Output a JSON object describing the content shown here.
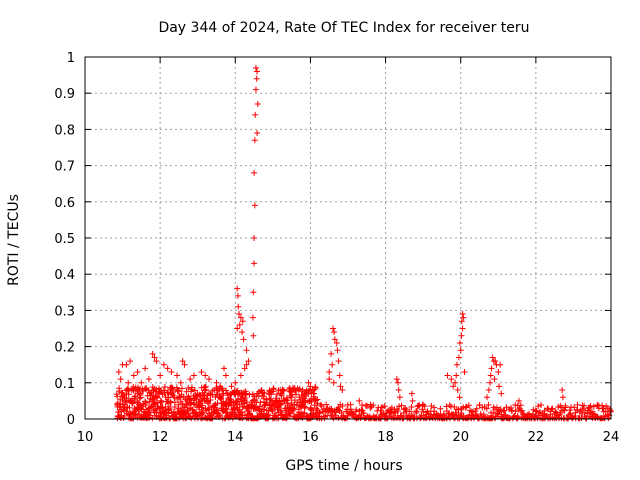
{
  "chart_data": {
    "type": "scatter",
    "title": "Day 344 of 2024, Rate Of TEC Index for receiver teru",
    "xlabel": "GPS time / hours",
    "ylabel": "ROTI / TECUs",
    "xlim": [
      10,
      24
    ],
    "ylim": [
      0,
      1
    ],
    "grid": true,
    "marker": "plus",
    "color": "#ff0000",
    "x_ticks": [
      "10",
      "12",
      "14",
      "16",
      "18",
      "20",
      "22",
      "24"
    ],
    "y_ticks": [
      "0",
      "0.1",
      "0.2",
      "0.3",
      "0.4",
      "0.5",
      "0.6",
      "0.7",
      "0.8",
      "0.9",
      "1"
    ],
    "series": [
      {
        "name": "ROTI",
        "note": "background noise band (~0–0.05 TECU) generated procedurally across 10.8–24 h",
        "peaks": [
          {
            "x": 14.55,
            "y": 0.97
          },
          {
            "x": 14.58,
            "y": 0.96
          },
          {
            "x": 14.57,
            "y": 0.94
          },
          {
            "x": 14.55,
            "y": 0.91
          },
          {
            "x": 14.6,
            "y": 0.87
          },
          {
            "x": 14.53,
            "y": 0.84
          },
          {
            "x": 14.58,
            "y": 0.79
          },
          {
            "x": 14.52,
            "y": 0.77
          },
          {
            "x": 14.5,
            "y": 0.68
          },
          {
            "x": 14.52,
            "y": 0.59
          },
          {
            "x": 14.5,
            "y": 0.5
          },
          {
            "x": 14.5,
            "y": 0.43
          },
          {
            "x": 14.48,
            "y": 0.35
          },
          {
            "x": 14.47,
            "y": 0.28
          },
          {
            "x": 14.48,
            "y": 0.23
          },
          {
            "x": 14.05,
            "y": 0.36
          },
          {
            "x": 14.07,
            "y": 0.34
          },
          {
            "x": 14.08,
            "y": 0.31
          },
          {
            "x": 14.1,
            "y": 0.29
          },
          {
            "x": 14.15,
            "y": 0.28
          },
          {
            "x": 14.2,
            "y": 0.27
          },
          {
            "x": 14.12,
            "y": 0.26
          },
          {
            "x": 14.05,
            "y": 0.25
          },
          {
            "x": 14.18,
            "y": 0.24
          },
          {
            "x": 14.22,
            "y": 0.22
          },
          {
            "x": 14.3,
            "y": 0.19
          },
          {
            "x": 14.3,
            "y": 0.15
          },
          {
            "x": 14.25,
            "y": 0.14
          },
          {
            "x": 14.35,
            "y": 0.16
          },
          {
            "x": 14.15,
            "y": 0.12
          },
          {
            "x": 16.6,
            "y": 0.25
          },
          {
            "x": 16.63,
            "y": 0.24
          },
          {
            "x": 16.65,
            "y": 0.22
          },
          {
            "x": 16.7,
            "y": 0.21
          },
          {
            "x": 16.55,
            "y": 0.18
          },
          {
            "x": 16.72,
            "y": 0.19
          },
          {
            "x": 16.75,
            "y": 0.16
          },
          {
            "x": 16.58,
            "y": 0.15
          },
          {
            "x": 16.5,
            "y": 0.13
          },
          {
            "x": 16.5,
            "y": 0.11
          },
          {
            "x": 16.78,
            "y": 0.12
          },
          {
            "x": 16.8,
            "y": 0.09
          },
          {
            "x": 16.85,
            "y": 0.08
          },
          {
            "x": 16.62,
            "y": 0.1
          },
          {
            "x": 18.3,
            "y": 0.11
          },
          {
            "x": 18.33,
            "y": 0.1
          },
          {
            "x": 18.35,
            "y": 0.08
          },
          {
            "x": 18.38,
            "y": 0.06
          },
          {
            "x": 18.7,
            "y": 0.07
          },
          {
            "x": 18.72,
            "y": 0.05
          },
          {
            "x": 20.05,
            "y": 0.29
          },
          {
            "x": 20.07,
            "y": 0.28
          },
          {
            "x": 20.03,
            "y": 0.27
          },
          {
            "x": 20.05,
            "y": 0.25
          },
          {
            "x": 20.02,
            "y": 0.23
          },
          {
            "x": 19.98,
            "y": 0.21
          },
          {
            "x": 20.0,
            "y": 0.19
          },
          {
            "x": 19.95,
            "y": 0.17
          },
          {
            "x": 19.9,
            "y": 0.15
          },
          {
            "x": 20.1,
            "y": 0.13
          },
          {
            "x": 19.88,
            "y": 0.12
          },
          {
            "x": 19.85,
            "y": 0.1
          },
          {
            "x": 19.65,
            "y": 0.12
          },
          {
            "x": 19.75,
            "y": 0.11
          },
          {
            "x": 19.8,
            "y": 0.09
          },
          {
            "x": 19.92,
            "y": 0.08
          },
          {
            "x": 19.97,
            "y": 0.06
          },
          {
            "x": 20.85,
            "y": 0.17
          },
          {
            "x": 20.88,
            "y": 0.16
          },
          {
            "x": 20.92,
            "y": 0.16
          },
          {
            "x": 20.95,
            "y": 0.15
          },
          {
            "x": 21.05,
            "y": 0.15
          },
          {
            "x": 20.82,
            "y": 0.14
          },
          {
            "x": 21.0,
            "y": 0.13
          },
          {
            "x": 20.8,
            "y": 0.12
          },
          {
            "x": 20.9,
            "y": 0.11
          },
          {
            "x": 20.78,
            "y": 0.1
          },
          {
            "x": 20.75,
            "y": 0.08
          },
          {
            "x": 21.02,
            "y": 0.09
          },
          {
            "x": 20.7,
            "y": 0.06
          },
          {
            "x": 21.08,
            "y": 0.07
          },
          {
            "x": 21.55,
            "y": 0.05
          },
          {
            "x": 22.7,
            "y": 0.08
          },
          {
            "x": 22.72,
            "y": 0.06
          },
          {
            "x": 15.95,
            "y": 0.1
          },
          {
            "x": 16.0,
            "y": 0.09
          },
          {
            "x": 16.05,
            "y": 0.08
          },
          {
            "x": 11.8,
            "y": 0.18
          },
          {
            "x": 11.85,
            "y": 0.17
          },
          {
            "x": 11.9,
            "y": 0.16
          },
          {
            "x": 11.2,
            "y": 0.16
          },
          {
            "x": 11.1,
            "y": 0.15
          },
          {
            "x": 11.0,
            "y": 0.15
          },
          {
            "x": 12.6,
            "y": 0.16
          },
          {
            "x": 12.65,
            "y": 0.15
          },
          {
            "x": 12.1,
            "y": 0.15
          },
          {
            "x": 12.2,
            "y": 0.14
          },
          {
            "x": 12.3,
            "y": 0.13
          },
          {
            "x": 11.6,
            "y": 0.14
          },
          {
            "x": 10.9,
            "y": 0.13
          },
          {
            "x": 11.4,
            "y": 0.13
          },
          {
            "x": 12.45,
            "y": 0.12
          },
          {
            "x": 13.1,
            "y": 0.13
          },
          {
            "x": 13.7,
            "y": 0.14
          },
          {
            "x": 13.75,
            "y": 0.12
          },
          {
            "x": 12.9,
            "y": 0.12
          },
          {
            "x": 13.3,
            "y": 0.11
          },
          {
            "x": 11.3,
            "y": 0.12
          },
          {
            "x": 12.0,
            "y": 0.12
          },
          {
            "x": 11.7,
            "y": 0.11
          },
          {
            "x": 13.5,
            "y": 0.1
          },
          {
            "x": 12.8,
            "y": 0.11
          },
          {
            "x": 13.2,
            "y": 0.12
          },
          {
            "x": 11.5,
            "y": 0.1
          },
          {
            "x": 10.95,
            "y": 0.11
          },
          {
            "x": 11.15,
            "y": 0.1
          },
          {
            "x": 12.55,
            "y": 0.1
          },
          {
            "x": 13.9,
            "y": 0.09
          },
          {
            "x": 14.0,
            "y": 0.1
          },
          {
            "x": 13.6,
            "y": 0.09
          },
          {
            "x": 14.7,
            "y": 0.08
          },
          {
            "x": 14.9,
            "y": 0.07
          },
          {
            "x": 15.2,
            "y": 0.07
          },
          {
            "x": 15.5,
            "y": 0.06
          },
          {
            "x": 15.8,
            "y": 0.06
          },
          {
            "x": 17.3,
            "y": 0.05
          },
          {
            "x": 17.6,
            "y": 0.04
          },
          {
            "x": 19.0,
            "y": 0.04
          },
          {
            "x": 23.4,
            "y": 0.03
          },
          {
            "x": 23.8,
            "y": 0.03
          }
        ]
      }
    ]
  }
}
